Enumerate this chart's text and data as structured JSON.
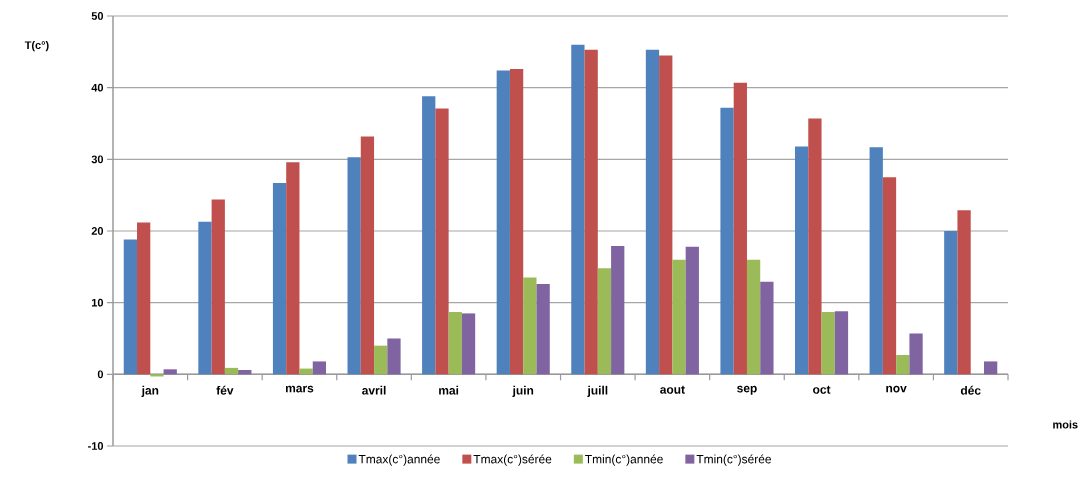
{
  "chart_data": {
    "type": "bar",
    "xlabel": "mois",
    "ylabel": "T(c°)",
    "categories": [
      "jan",
      "fév",
      "mars",
      "avril",
      "mai",
      "juin",
      "juill",
      "aout",
      "sep",
      "oct",
      "nov",
      "déc"
    ],
    "series": [
      {
        "name": "Tmax(c°)année",
        "color": "#4f81bd",
        "values": [
          18.8,
          21.3,
          26.7,
          30.3,
          38.8,
          42.4,
          46.0,
          45.3,
          37.2,
          31.8,
          31.7,
          20.0
        ]
      },
      {
        "name": "Tmax(c°)sérée",
        "color": "#c0504d",
        "values": [
          21.2,
          24.4,
          29.6,
          33.2,
          37.1,
          42.6,
          45.3,
          44.5,
          40.7,
          35.7,
          27.5,
          22.9
        ]
      },
      {
        "name": "Tmin(c°)année",
        "color": "#9bbb59",
        "values": [
          -0.3,
          0.9,
          0.8,
          4.0,
          8.7,
          13.5,
          14.8,
          16.0,
          16.0,
          8.7,
          2.7,
          null
        ]
      },
      {
        "name": "Tmin(c°)sérée",
        "color": "#8064a2",
        "values": [
          0.7,
          0.6,
          1.8,
          5.0,
          8.5,
          12.6,
          17.9,
          17.8,
          12.9,
          8.8,
          5.7,
          1.8
        ]
      }
    ],
    "ylim": [
      -10,
      50
    ],
    "yticks": [
      -10,
      0,
      10,
      20,
      30,
      40,
      50
    ],
    "grid": "y",
    "legend": "bottom"
  }
}
